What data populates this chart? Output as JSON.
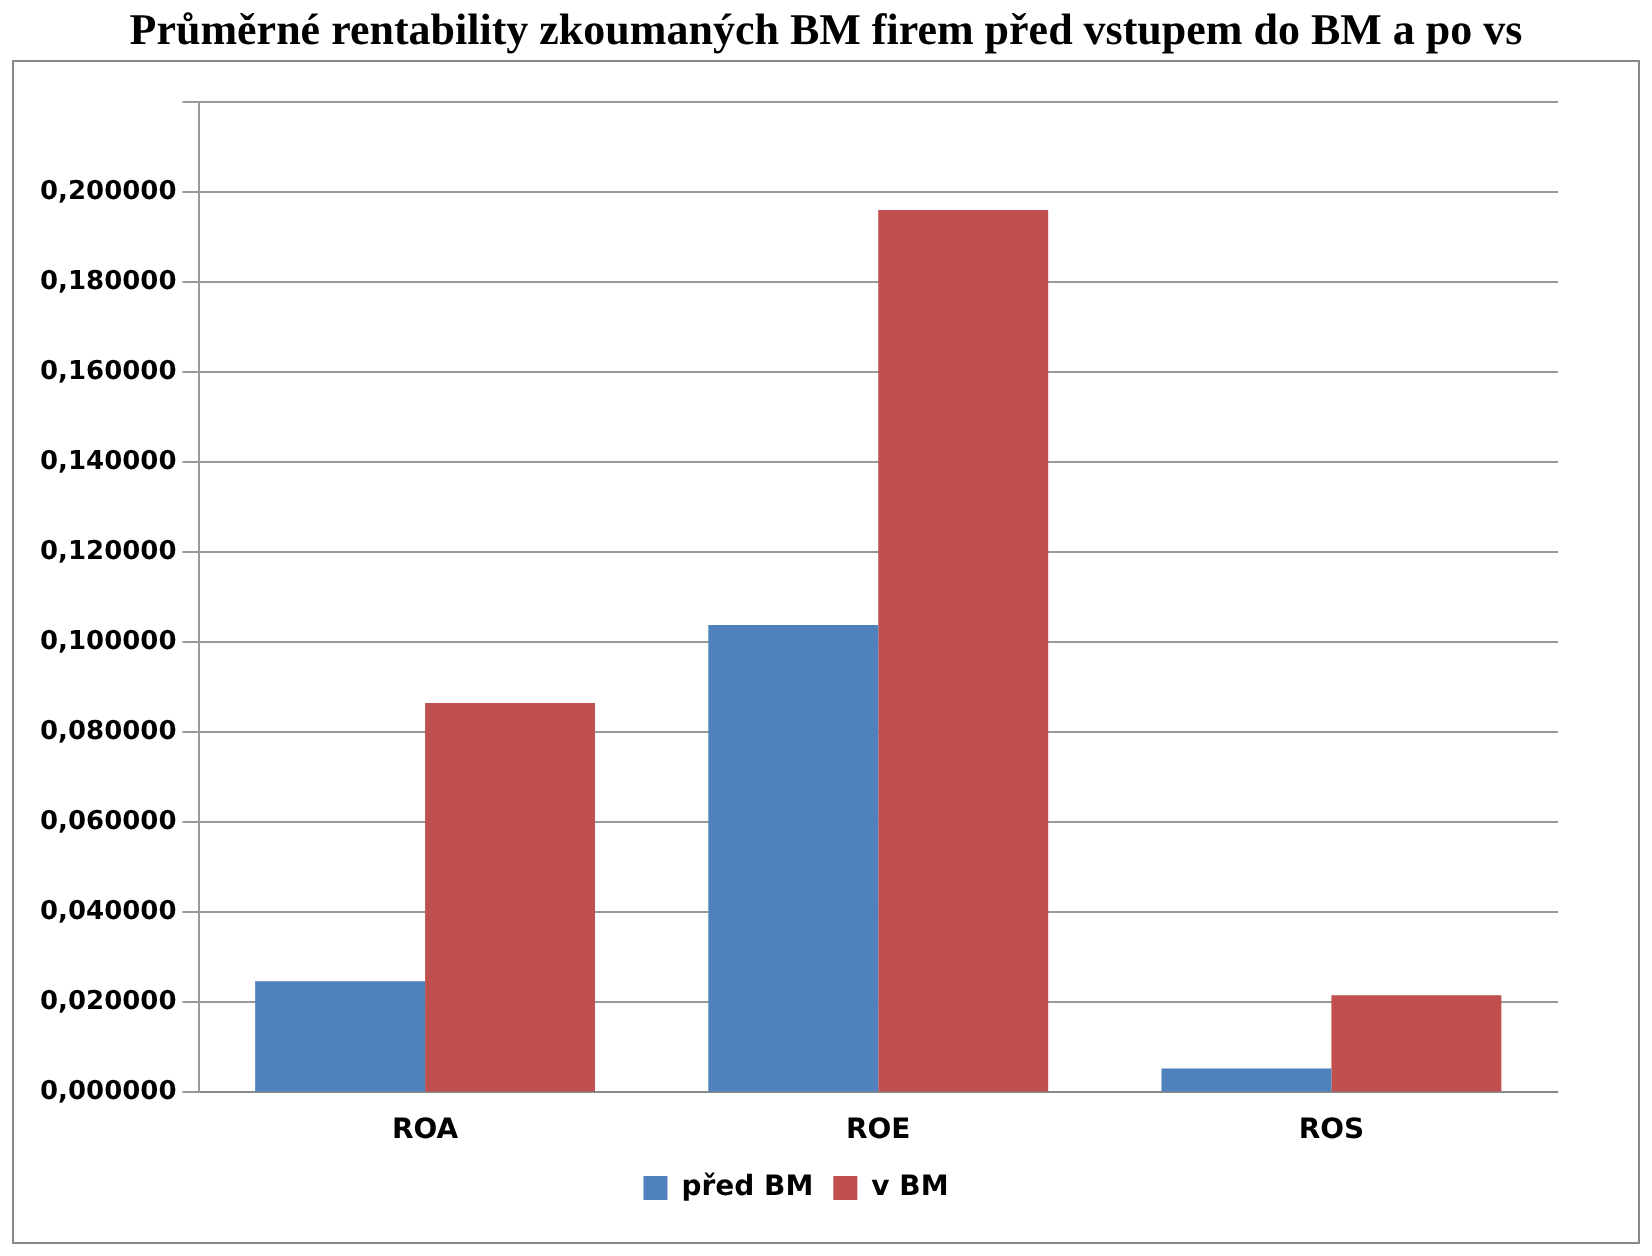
{
  "chart_data": {
    "type": "bar",
    "title": "Průměrné rentability zkoumaných BM firem před vstupem do BM a po vs",
    "categories": [
      "ROA",
      "ROE",
      "ROS"
    ],
    "series": [
      {
        "name": "před BM",
        "color": "#4f81bd",
        "values": [
          0.0247,
          0.1038,
          0.0053
        ]
      },
      {
        "name": "v BM",
        "color": "#c0504d",
        "values": [
          0.0865,
          0.196,
          0.0216
        ]
      }
    ],
    "ylim": [
      0,
      0.22
    ],
    "yticks": [
      {
        "value": 0,
        "label": "0,000000"
      },
      {
        "value": 0.02,
        "label": "0,020000"
      },
      {
        "value": 0.04,
        "label": "0,040000"
      },
      {
        "value": 0.06,
        "label": "0,060000"
      },
      {
        "value": 0.08,
        "label": "0,080000"
      },
      {
        "value": 0.1,
        "label": "0,100000"
      },
      {
        "value": 0.12,
        "label": "0,120000"
      },
      {
        "value": 0.14,
        "label": "0,140000"
      },
      {
        "value": 0.16,
        "label": "0,160000"
      },
      {
        "value": 0.18,
        "label": "0,180000"
      },
      {
        "value": 0.2,
        "label": "0,200000"
      },
      {
        "value": 0.22,
        "label": null
      }
    ],
    "grid": "y",
    "legend": "bottom"
  }
}
